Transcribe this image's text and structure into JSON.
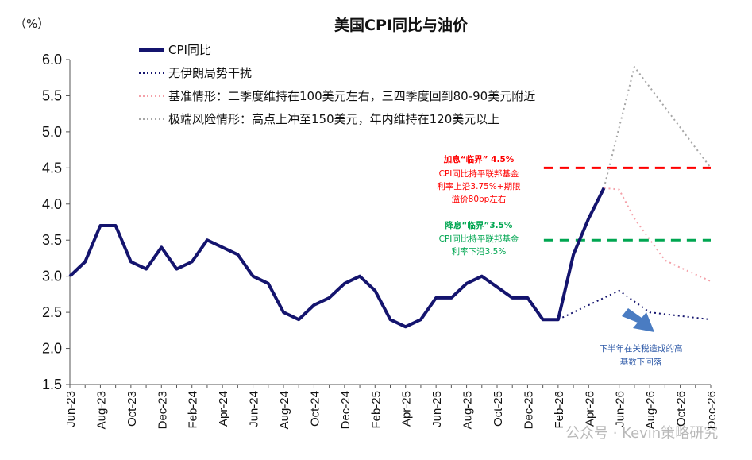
{
  "chart_data": {
    "type": "line",
    "title": "美国CPI同比与油价",
    "unit_label": "（%）",
    "ylim": [
      1.5,
      6.0
    ],
    "yticks": [
      "1.5",
      "2.0",
      "2.5",
      "3.0",
      "3.5",
      "4.0",
      "4.5",
      "5.0",
      "5.5",
      "6.0"
    ],
    "x": [
      "Jun-23",
      "Jul-23",
      "Aug-23",
      "Sep-23",
      "Oct-23",
      "Nov-23",
      "Dec-23",
      "Jan-24",
      "Feb-24",
      "Mar-24",
      "Apr-24",
      "May-24",
      "Jun-24",
      "Jul-24",
      "Aug-24",
      "Sep-24",
      "Oct-24",
      "Nov-24",
      "Dec-24",
      "Jan-25",
      "Feb-25",
      "Mar-25",
      "Apr-25",
      "May-25",
      "Jun-25",
      "Jul-25",
      "Aug-25",
      "Sep-25",
      "Oct-25",
      "Nov-25",
      "Dec-25",
      "Jan-26",
      "Feb-26",
      "Mar-26",
      "Apr-26",
      "May-26",
      "Jun-26",
      "Jul-26",
      "Aug-26",
      "Sep-26",
      "Oct-26",
      "Nov-26",
      "Dec-26"
    ],
    "xtick_labels": [
      "Jun-23",
      "Aug-23",
      "Oct-23",
      "Dec-23",
      "Feb-24",
      "Apr-24",
      "Jun-24",
      "Aug-24",
      "Oct-24",
      "Dec-24",
      "Feb-25",
      "Apr-25",
      "Jun-25",
      "Aug-25",
      "Oct-25",
      "Dec-25",
      "Feb-26",
      "Apr-26",
      "Jun-26",
      "Aug-26",
      "Oct-26",
      "Dec-26"
    ],
    "series": [
      {
        "name": "CPI同比",
        "style": "solid",
        "color": "#14146e",
        "points": [
          [
            "Jun-23",
            3.0
          ],
          [
            "Jul-23",
            3.2
          ],
          [
            "Aug-23",
            3.7
          ],
          [
            "Sep-23",
            3.7
          ],
          [
            "Oct-23",
            3.2
          ],
          [
            "Nov-23",
            3.1
          ],
          [
            "Dec-23",
            3.4
          ],
          [
            "Jan-24",
            3.1
          ],
          [
            "Feb-24",
            3.2
          ],
          [
            "Mar-24",
            3.5
          ],
          [
            "Apr-24",
            3.4
          ],
          [
            "May-24",
            3.3
          ],
          [
            "Jun-24",
            3.0
          ],
          [
            "Jul-24",
            2.9
          ],
          [
            "Aug-24",
            2.5
          ],
          [
            "Sep-24",
            2.4
          ],
          [
            "Oct-24",
            2.6
          ],
          [
            "Nov-24",
            2.7
          ],
          [
            "Dec-24",
            2.9
          ],
          [
            "Jan-25",
            3.0
          ],
          [
            "Feb-25",
            2.8
          ],
          [
            "Mar-25",
            2.4
          ],
          [
            "Apr-25",
            2.3
          ],
          [
            "May-25",
            2.4
          ],
          [
            "Jun-25",
            2.7
          ],
          [
            "Jul-25",
            2.7
          ],
          [
            "Aug-25",
            2.9
          ],
          [
            "Sep-25",
            3.0
          ],
          [
            "Oct-25",
            2.85
          ],
          [
            "Nov-25",
            2.7
          ],
          [
            "Dec-25",
            2.7
          ],
          [
            "Jan-26",
            2.4
          ],
          [
            "Feb-26",
            2.4
          ],
          [
            "Mar-26",
            3.3
          ],
          [
            "Apr-26",
            3.8
          ],
          [
            "May-26",
            4.22
          ]
        ]
      },
      {
        "name": "无伊朗局势干扰",
        "style": "dotted",
        "color": "#14146e",
        "points": [
          [
            "Feb-26",
            2.4
          ],
          [
            "Jun-26",
            2.8
          ],
          [
            "Aug-26",
            2.5
          ],
          [
            "Oct-26",
            2.45
          ],
          [
            "Dec-26",
            2.4
          ]
        ]
      },
      {
        "name": "基准情形：二季度维持在100美元左右，三四季度回到80-90美元附近",
        "style": "dotted",
        "color": "#f4a0a8",
        "points": [
          [
            "May-26",
            4.22
          ],
          [
            "Jun-26",
            4.2
          ],
          [
            "Jul-26",
            3.8
          ],
          [
            "Sep-26",
            3.22
          ],
          [
            "Oct-26",
            3.12
          ],
          [
            "Dec-26",
            2.93
          ]
        ]
      },
      {
        "name": "极端风险情形：高点上冲至150美元，年内维持在120美元以上",
        "style": "dotted",
        "color": "#a6a6a6",
        "points": [
          [
            "May-26",
            4.22
          ],
          [
            "Jul-26",
            5.9
          ],
          [
            "Dec-26",
            4.5
          ]
        ]
      }
    ],
    "reference_lines": [
      {
        "y": 4.5,
        "color": "#ff0000",
        "style": "dashed",
        "from": "Feb-26",
        "to": "Dec-26"
      },
      {
        "y": 3.5,
        "color": "#00a651",
        "style": "dashed",
        "from": "Feb-26",
        "to": "Dec-26"
      }
    ],
    "annotations": [
      {
        "color": "#ff0000",
        "lines": [
          "加息“临界” 4.5%",
          "CPI同比持平联邦基金",
          "利率上沿3.75%+期限",
          "溢价80bp左右"
        ]
      },
      {
        "color": "#00a651",
        "lines": [
          "降息“临界”3.5%",
          "CPI同比持平联邦基金",
          "利率下沿3.5%"
        ]
      },
      {
        "color": "#2e5aa8",
        "lines": [
          "下半年在关税造成的高",
          "基数下回落"
        ]
      }
    ],
    "arrow_color": "#4a7cc2",
    "watermark": "公众号 · Kevin策略研究",
    "grid": false,
    "legend": "top-left"
  }
}
